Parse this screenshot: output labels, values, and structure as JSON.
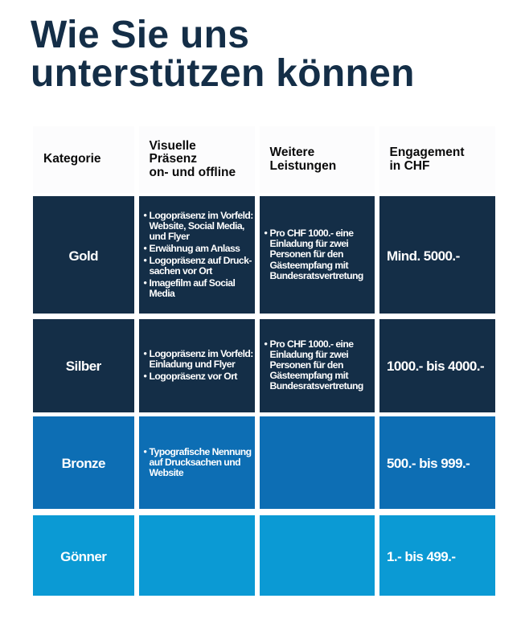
{
  "page": {
    "title": "Wie Sie uns\nunterstützen können"
  },
  "colors": {
    "title": "#142e47",
    "tier_dark_navy": "#142e47",
    "tier_medium_blue": "#0d6eb4",
    "tier_light_blue": "#0b9ad4",
    "header_background": "#fcfcfd",
    "header_text": "#0a0a0a",
    "cell_text": "#ffffff",
    "page_background": "#ffffff"
  },
  "table": {
    "headers": {
      "category": "Kategorie",
      "visual": "Visuelle\nPräsenz\non- und offline",
      "benefits": "Weitere\nLeistungen",
      "engagement": "Engagement\nin CHF"
    },
    "rows": [
      {
        "category": "Gold",
        "color": "#142e47",
        "visual": [
          "Logopräsenz im Vorfeld:\nWebsite, Social Media,\nund Flyer",
          "Erwähnug am Anlass",
          "Logopräsenz auf Druck-\nsachen vor Ort",
          "Imagefilm auf Social\nMedia"
        ],
        "benefits": [
          "Pro CHF 1000.- eine\nEinladung für zwei\nPersonen für den\nGästeempfang mit\nBundesratsvertretung"
        ],
        "amount": "Mind. 5000.-"
      },
      {
        "category": "Silber",
        "color": "#142e47",
        "visual": [
          "Logopräsenz im Vorfeld:\nEinladung und Flyer",
          "Logopräsenz vor Ort"
        ],
        "benefits": [
          "Pro CHF 1000.- eine\nEinladung für zwei\nPersonen für den\nGästeempfang mit\nBundesratsvertretung"
        ],
        "amount": "1000.- bis 4000.-"
      },
      {
        "category": "Bronze",
        "color": "#0d6eb4",
        "visual": [
          "Typografische Nennung\nauf Drucksachen und\nWebsite"
        ],
        "benefits": [],
        "amount": "500.- bis 999.-"
      },
      {
        "category": "Gönner",
        "color": "#0b9ad4",
        "visual": [],
        "benefits": [],
        "amount": "1.- bis 499.-"
      }
    ]
  }
}
